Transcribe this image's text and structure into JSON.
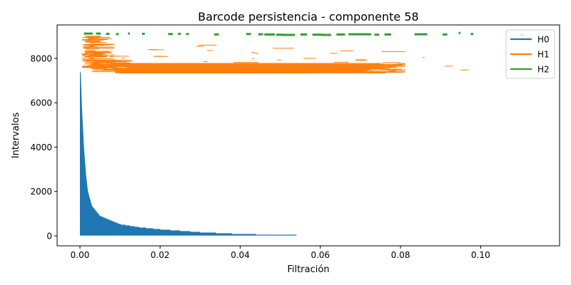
{
  "chart_data": {
    "type": "barcode",
    "title": "Barcode persistencia - componente 58",
    "xlabel": "Filtración",
    "ylabel": "Intervalos",
    "xlim": [
      -0.0057,
      0.1197
    ],
    "ylim": [
      -450,
      9510
    ],
    "x_ticks": [
      {
        "value": 0.0,
        "label": "0.00"
      },
      {
        "value": 0.02,
        "label": "0.02"
      },
      {
        "value": 0.04,
        "label": "0.04"
      },
      {
        "value": 0.06,
        "label": "0.06"
      },
      {
        "value": 0.08,
        "label": "0.08"
      },
      {
        "value": 0.1,
        "label": "0.10"
      }
    ],
    "y_ticks": [
      {
        "value": 0,
        "label": "0"
      },
      {
        "value": 2000,
        "label": "2000"
      },
      {
        "value": 4000,
        "label": "4000"
      },
      {
        "value": 6000,
        "label": "6000"
      },
      {
        "value": 8000,
        "label": "8000"
      }
    ],
    "legend": {
      "position": "top-right",
      "entries": [
        "H0",
        "H1",
        "H2"
      ]
    },
    "grid": false,
    "series": [
      {
        "name": "H0",
        "color": "#1f77b4",
        "count": 7400,
        "profile": [
          [
            0,
            7400
          ],
          [
            0.0002,
            7350
          ],
          [
            0.0005,
            5800
          ],
          [
            0.001,
            4000
          ],
          [
            0.0015,
            2800
          ],
          [
            0.002,
            2000
          ],
          [
            0.003,
            1350
          ],
          [
            0.005,
            900
          ],
          [
            0.01,
            520
          ],
          [
            0.015,
            380
          ],
          [
            0.02,
            290
          ],
          [
            0.03,
            160
          ],
          [
            0.04,
            80
          ],
          [
            0.05,
            40
          ],
          [
            0.06,
            20
          ],
          [
            0.07,
            10
          ],
          [
            0.08,
            3
          ],
          [
            0.085,
            0
          ]
        ]
      },
      {
        "name": "H1",
        "color": "#ff7f0e",
        "count": 1700,
        "y_range": [
          7400,
          9100
        ],
        "segments": [
          {
            "y_mid": 7400,
            "start": 0.003,
            "end": 0.081
          },
          {
            "y_mid": 7480,
            "start": 0.095,
            "end": 0.097
          },
          {
            "y_mid": 7650,
            "start": 0.091,
            "end": 0.093
          },
          {
            "y_mid": 8050,
            "start": 0.0855,
            "end": 0.086
          }
        ]
      },
      {
        "name": "H2",
        "color": "#2ca02c",
        "count": 50,
        "y_range": [
          9050,
          9160
        ],
        "segments": [
          {
            "y": 9120,
            "start": 0.001,
            "end": 0.003
          },
          {
            "y": 9120,
            "start": 0.004,
            "end": 0.005
          },
          {
            "y": 9110,
            "start": 0.0065,
            "end": 0.0072
          },
          {
            "y": 9100,
            "start": 0.009,
            "end": 0.0095
          },
          {
            "y": 9120,
            "start": 0.012,
            "end": 0.0123
          },
          {
            "y": 9110,
            "start": 0.0155,
            "end": 0.016
          },
          {
            "y": 9100,
            "start": 0.022,
            "end": 0.023
          },
          {
            "y": 9110,
            "start": 0.0245,
            "end": 0.025
          },
          {
            "y": 9100,
            "start": 0.0265,
            "end": 0.027
          },
          {
            "y": 9080,
            "start": 0.0335,
            "end": 0.0345
          },
          {
            "y": 9100,
            "start": 0.0415,
            "end": 0.0425
          },
          {
            "y": 9090,
            "start": 0.0445,
            "end": 0.0455
          },
          {
            "y": 9080,
            "start": 0.046,
            "end": 0.0485
          },
          {
            "y": 9070,
            "start": 0.049,
            "end": 0.0505
          },
          {
            "y": 9060,
            "start": 0.0505,
            "end": 0.0535
          },
          {
            "y": 9080,
            "start": 0.055,
            "end": 0.0565
          },
          {
            "y": 9070,
            "start": 0.058,
            "end": 0.0605
          },
          {
            "y": 9060,
            "start": 0.0605,
            "end": 0.0625
          },
          {
            "y": 9080,
            "start": 0.064,
            "end": 0.066
          },
          {
            "y": 9090,
            "start": 0.067,
            "end": 0.0725
          },
          {
            "y": 9070,
            "start": 0.0735,
            "end": 0.0745
          },
          {
            "y": 9080,
            "start": 0.076,
            "end": 0.0775
          },
          {
            "y": 9090,
            "start": 0.0835,
            "end": 0.0865
          },
          {
            "y": 9080,
            "start": 0.0905,
            "end": 0.0915
          },
          {
            "y": 9150,
            "start": 0.0945,
            "end": 0.0948
          },
          {
            "y": 9100,
            "start": 0.0975,
            "end": 0.098
          },
          {
            "y": 9060,
            "start": 0.11,
            "end": 0.1105
          }
        ]
      }
    ]
  }
}
